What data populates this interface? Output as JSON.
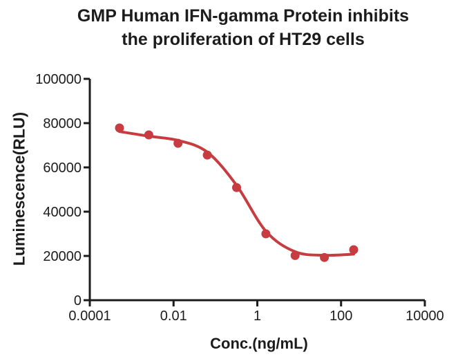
{
  "figure": {
    "title_line1": "GMP Human IFN-gamma Protein inhibits",
    "title_line2": "the proliferation of HT29 cells"
  },
  "colors": {
    "series_red": "#C73C40",
    "axis_black": "#1c1c1c",
    "background": "#ffffff"
  },
  "chart_data": {
    "type": "scatter",
    "subtype": "dose-response inhibition curve with 4PL fit line",
    "title": "GMP Human IFN-gamma Protein inhibits the proliferation of HT29 cells",
    "xlabel": "Conc.(ng/mL)",
    "ylabel": "Luminescence(RLU)",
    "x_scale": "log10",
    "xlim": [
      0.0001,
      10000
    ],
    "ylim": [
      0,
      100000
    ],
    "grid": false,
    "legend_position": "none",
    "x_ticks": [
      {
        "value": 0.0001,
        "label": "0.0001"
      },
      {
        "value": 0.01,
        "label": "0.01"
      },
      {
        "value": 1,
        "label": "1"
      },
      {
        "value": 100,
        "label": "100"
      },
      {
        "value": 10000,
        "label": "10000"
      }
    ],
    "y_ticks": [
      {
        "value": 0,
        "label": "0"
      },
      {
        "value": 20000,
        "label": "20000"
      },
      {
        "value": 40000,
        "label": "40000"
      },
      {
        "value": 60000,
        "label": "60000"
      },
      {
        "value": 80000,
        "label": "80000"
      },
      {
        "value": 100000,
        "label": "100000"
      }
    ],
    "series": [
      {
        "marker": "circle",
        "marker_color": "#C73C40",
        "line_color": "#C73C40",
        "points": [
          {
            "x": 0.000512,
            "y": 77800
          },
          {
            "x": 0.00256,
            "y": 74700
          },
          {
            "x": 0.0128,
            "y": 70900
          },
          {
            "x": 0.064,
            "y": 65600
          },
          {
            "x": 0.32,
            "y": 50900
          },
          {
            "x": 1.6,
            "y": 30000
          },
          {
            "x": 8,
            "y": 20200
          },
          {
            "x": 40,
            "y": 19300
          },
          {
            "x": 200,
            "y": 22800
          }
        ],
        "fit_curve_anchors": [
          {
            "x": 0.000512,
            "y": 76200
          },
          {
            "x": 0.00256,
            "y": 74100
          },
          {
            "x": 0.0128,
            "y": 72200
          },
          {
            "x": 0.064,
            "y": 66900
          },
          {
            "x": 0.32,
            "y": 51900
          },
          {
            "x": 1.6,
            "y": 31200
          },
          {
            "x": 8,
            "y": 21900
          },
          {
            "x": 40,
            "y": 20300
          },
          {
            "x": 200,
            "y": 20800
          }
        ]
      }
    ]
  }
}
